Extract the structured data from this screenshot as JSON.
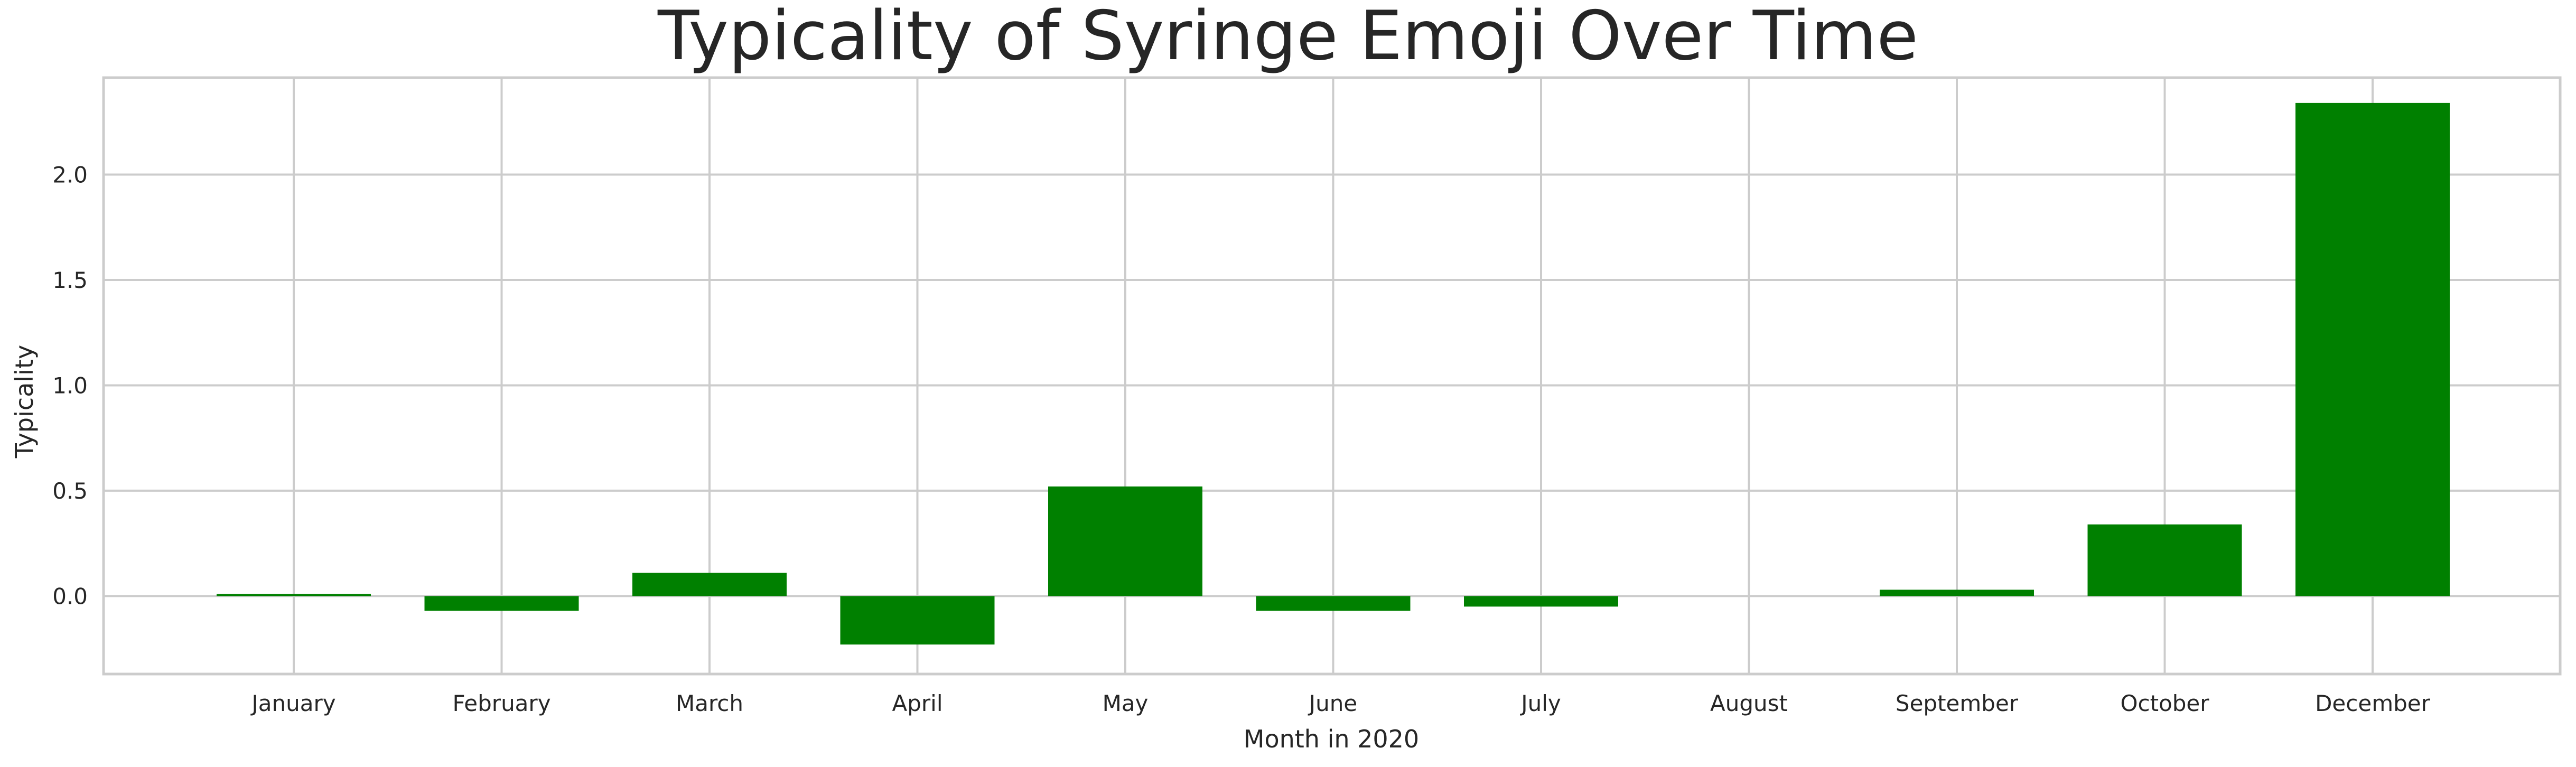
{
  "chart_data": {
    "type": "bar",
    "title": "Typicality of Syringe Emoji Over Time",
    "xlabel": "Month in 2020",
    "ylabel": "Typicality",
    "categories": [
      "January",
      "February",
      "March",
      "April",
      "May",
      "June",
      "July",
      "August",
      "September",
      "October",
      "December"
    ],
    "values": [
      0.01,
      -0.07,
      0.11,
      -0.23,
      0.52,
      -0.07,
      -0.05,
      0.0,
      0.03,
      0.34,
      2.34
    ],
    "ylim": [
      -0.37,
      2.46
    ],
    "yticks": [
      0.0,
      0.5,
      1.0,
      1.5,
      2.0
    ],
    "ytick_labels": [
      "0.0",
      "0.5",
      "1.0",
      "1.5",
      "2.0"
    ],
    "bar_color": "#008000",
    "grid": true
  }
}
